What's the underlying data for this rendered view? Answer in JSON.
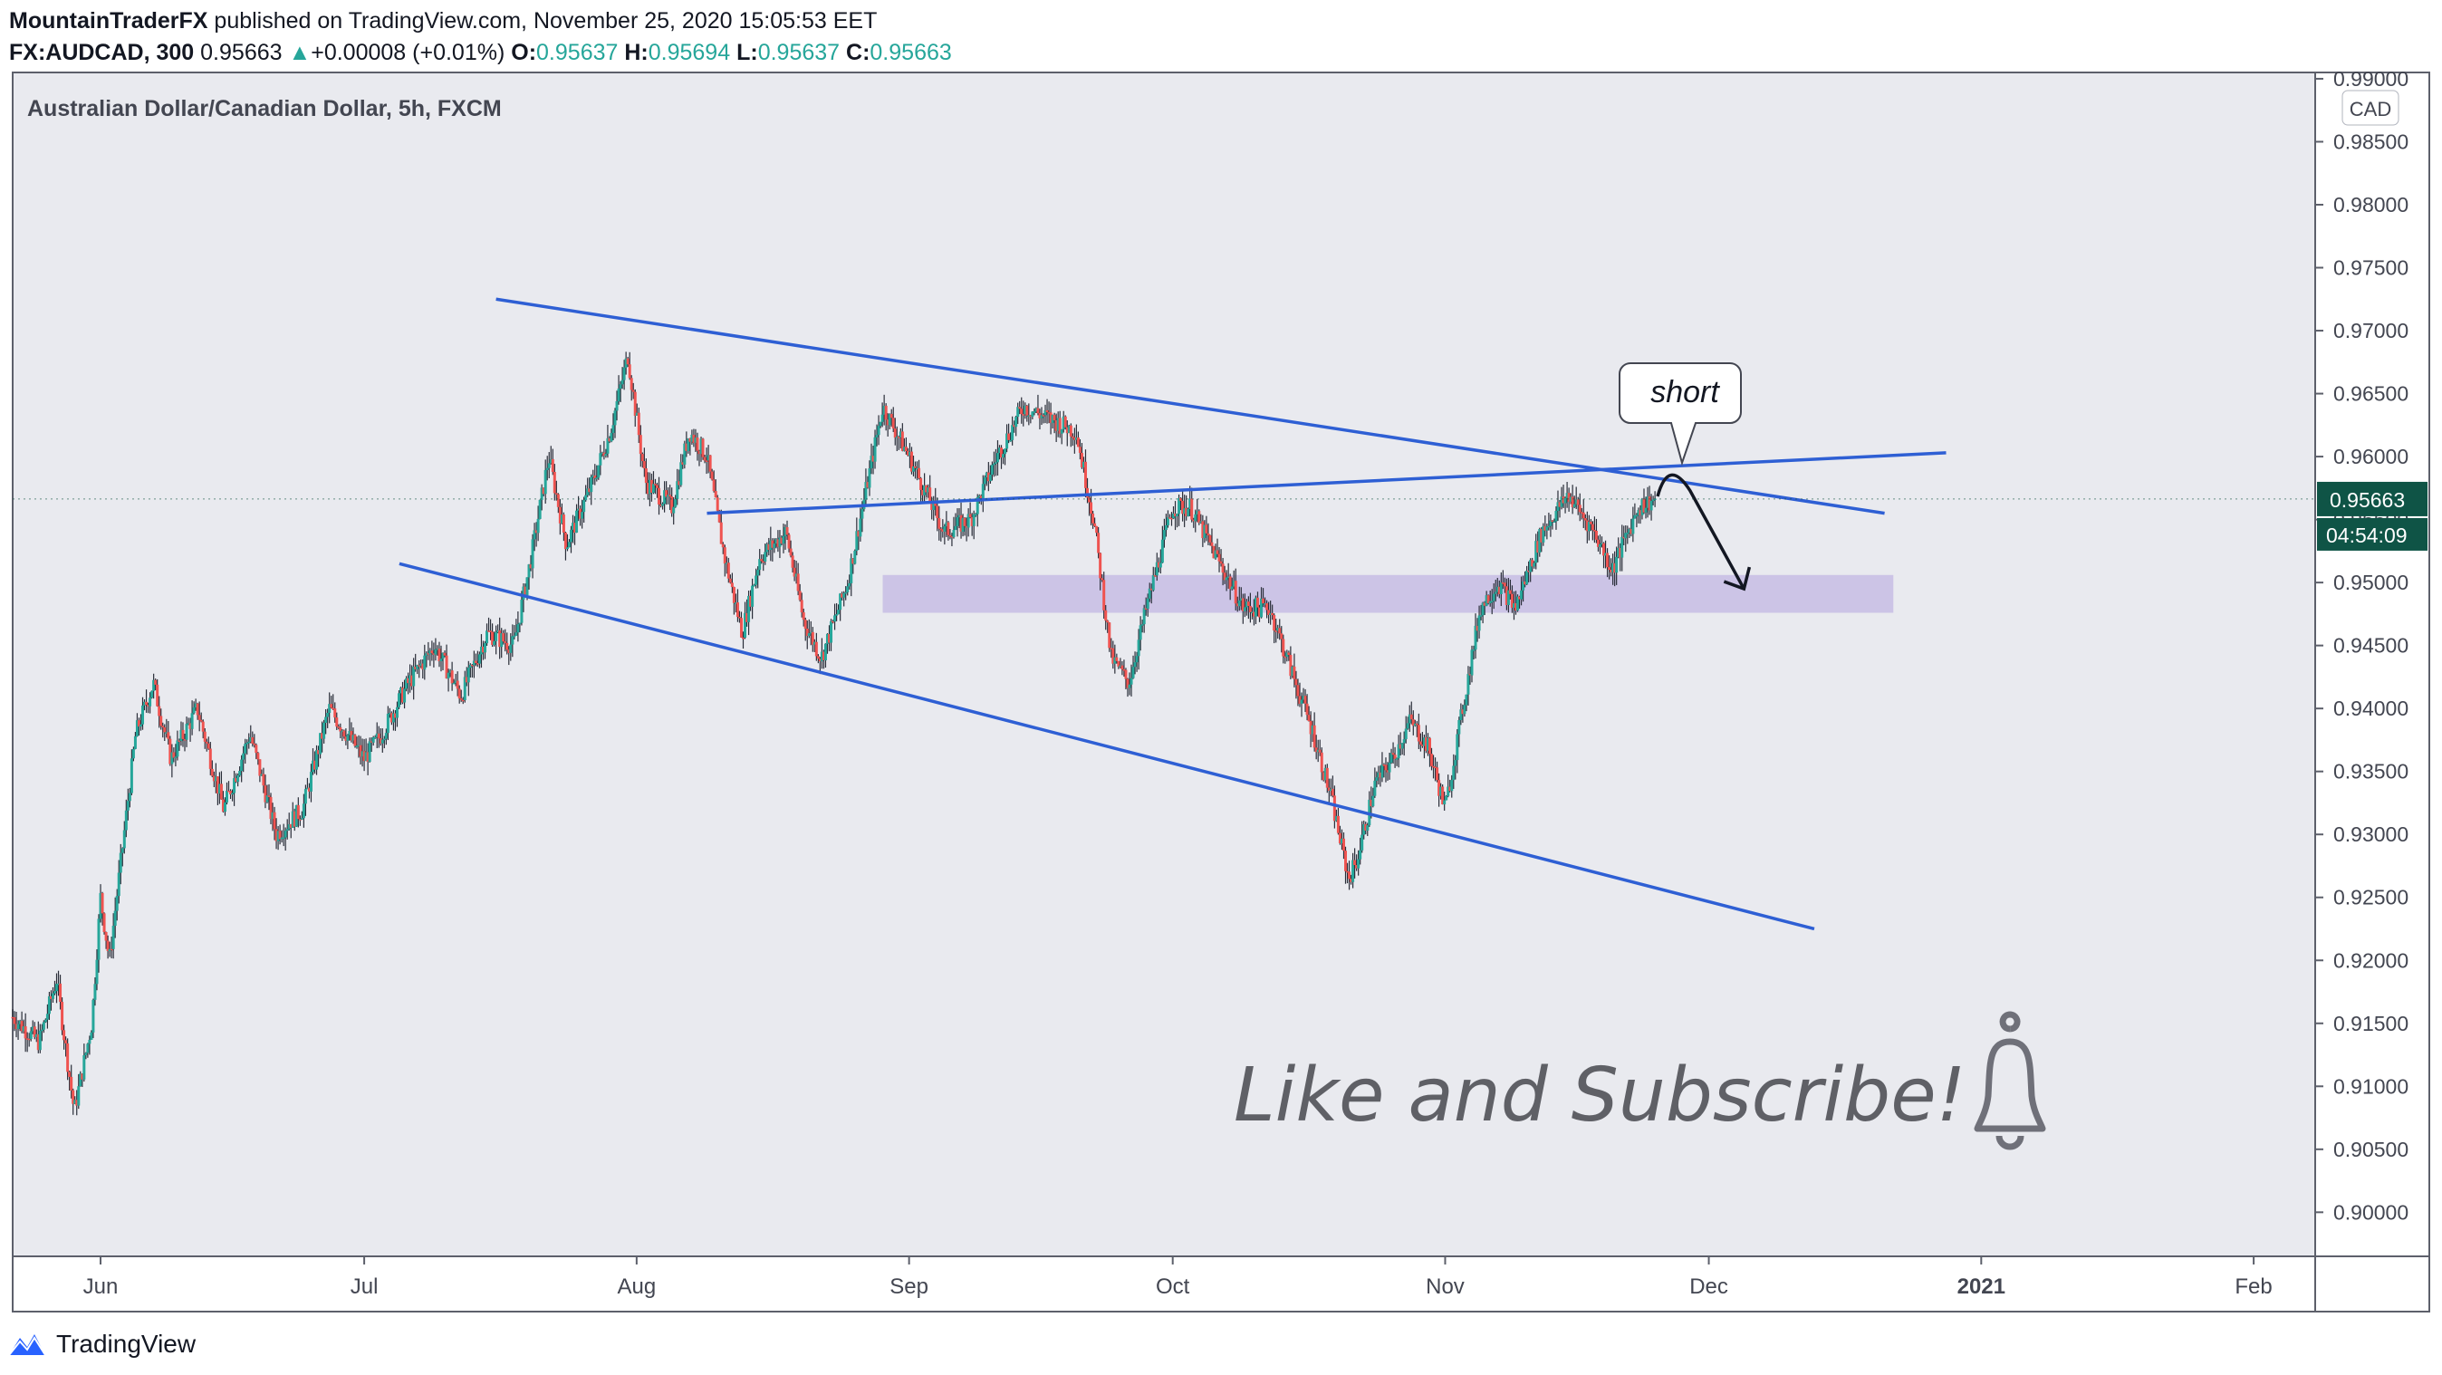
{
  "header": {
    "author": "MountainTraderFX",
    "published_text": " published on TradingView.com, November 25, 2020 15:05:53 EET",
    "symbol": "FX:AUDCAD, 300",
    "last_price": "0.95663",
    "change_arrow": "▲",
    "change": "+0.00008 (+0.01%)",
    "open_label": "O:",
    "open": "0.95637",
    "high_label": "H:",
    "high": "0.95694",
    "low_label": "L:",
    "low": "0.95637",
    "close_label": "C:",
    "close": "0.95663"
  },
  "footer": {
    "brand": "TradingView",
    "logo_icon": "tradingview-logo-icon"
  },
  "annotations": {
    "callout": "short",
    "cta_text": "Like and Subscribe!",
    "bell_icon": "bell-icon",
    "zone_color": "#c9c0e4",
    "trendline_color": "#2e5fd4"
  },
  "chart_data": {
    "type": "candlestick",
    "title": "Australian Dollar/Canadian Dollar, 5h, FXCM",
    "currency": "CAD",
    "x_ticks": [
      "Jun",
      "Jul",
      "Aug",
      "Sep",
      "Oct",
      "Nov",
      "Dec",
      "2021",
      "Feb"
    ],
    "x_tick_dates": [
      "2020-06-01",
      "2020-07-01",
      "2020-08-01",
      "2020-09-01",
      "2020-10-01",
      "2020-11-01",
      "2020-12-01",
      "2021-01-01",
      "2021-02-01"
    ],
    "x_range": [
      "2020-05-22",
      "2021-02-08"
    ],
    "y_range": [
      0.8965,
      0.9905
    ],
    "y_ticks": [
      "0.99000",
      "0.98500",
      "0.98000",
      "0.97500",
      "0.97000",
      "0.96500",
      "0.96000",
      "0.95500",
      "0.95000",
      "0.94500",
      "0.94000",
      "0.93500",
      "0.93000",
      "0.92500",
      "0.92000",
      "0.91500",
      "0.91000",
      "0.90500",
      "0.90000"
    ],
    "last_price_label": "0.95663",
    "countdown": "04:54:09",
    "up_color": "#26a69a",
    "down_color": "#ef5350",
    "price_path": [
      [
        "2020-05-22",
        0.9155
      ],
      [
        "2020-05-25",
        0.9135
      ],
      [
        "2020-05-27",
        0.9185
      ],
      [
        "2020-05-29",
        0.908
      ],
      [
        "2020-05-31",
        0.915
      ],
      [
        "2020-06-01",
        0.925
      ],
      [
        "2020-06-02",
        0.92
      ],
      [
        "2020-06-05",
        0.938
      ],
      [
        "2020-06-07",
        0.942
      ],
      [
        "2020-06-09",
        0.936
      ],
      [
        "2020-06-12",
        0.94
      ],
      [
        "2020-06-15",
        0.932
      ],
      [
        "2020-06-18",
        0.938
      ],
      [
        "2020-06-21",
        0.93
      ],
      [
        "2020-06-24",
        0.932
      ],
      [
        "2020-06-27",
        0.94
      ],
      [
        "2020-07-01",
        0.936
      ],
      [
        "2020-07-03",
        0.938
      ],
      [
        "2020-07-06",
        0.942
      ],
      [
        "2020-07-09",
        0.945
      ],
      [
        "2020-07-12",
        0.941
      ],
      [
        "2020-07-15",
        0.946
      ],
      [
        "2020-07-18",
        0.945
      ],
      [
        "2020-07-20",
        0.952
      ],
      [
        "2020-07-22",
        0.96
      ],
      [
        "2020-07-24",
        0.953
      ],
      [
        "2020-07-27",
        0.958
      ],
      [
        "2020-07-29",
        0.962
      ],
      [
        "2020-07-31",
        0.968
      ],
      [
        "2020-08-02",
        0.958
      ],
      [
        "2020-08-05",
        0.956
      ],
      [
        "2020-08-07",
        0.962
      ],
      [
        "2020-08-09",
        0.96
      ],
      [
        "2020-08-11",
        0.952
      ],
      [
        "2020-08-13",
        0.946
      ],
      [
        "2020-08-15",
        0.952
      ],
      [
        "2020-08-18",
        0.954
      ],
      [
        "2020-08-20",
        0.947
      ],
      [
        "2020-08-22",
        0.944
      ],
      [
        "2020-08-25",
        0.95
      ],
      [
        "2020-08-27",
        0.957
      ],
      [
        "2020-08-29",
        0.964
      ],
      [
        "2020-09-01",
        0.96
      ],
      [
        "2020-09-03",
        0.957
      ],
      [
        "2020-09-05",
        0.954
      ],
      [
        "2020-09-08",
        0.955
      ],
      [
        "2020-09-11",
        0.96
      ],
      [
        "2020-09-14",
        0.964
      ],
      [
        "2020-09-17",
        0.963
      ],
      [
        "2020-09-20",
        0.962
      ],
      [
        "2020-09-22",
        0.955
      ],
      [
        "2020-09-24",
        0.944
      ],
      [
        "2020-09-26",
        0.942
      ],
      [
        "2020-09-28",
        0.948
      ],
      [
        "2020-10-01",
        0.956
      ],
      [
        "2020-10-03",
        0.956
      ],
      [
        "2020-10-06",
        0.952
      ],
      [
        "2020-10-09",
        0.948
      ],
      [
        "2020-10-12",
        0.948
      ],
      [
        "2020-10-14",
        0.944
      ],
      [
        "2020-10-17",
        0.938
      ],
      [
        "2020-10-19",
        0.933
      ],
      [
        "2020-10-21",
        0.9265
      ],
      [
        "2020-10-22",
        0.928
      ],
      [
        "2020-10-24",
        0.934
      ],
      [
        "2020-10-26",
        0.936
      ],
      [
        "2020-10-28",
        0.939
      ],
      [
        "2020-10-30",
        0.937
      ],
      [
        "2020-11-01",
        0.932
      ],
      [
        "2020-11-03",
        0.94
      ],
      [
        "2020-11-05",
        0.948
      ],
      [
        "2020-11-07",
        0.95
      ],
      [
        "2020-11-09",
        0.948
      ],
      [
        "2020-11-12",
        0.954
      ],
      [
        "2020-11-15",
        0.957
      ],
      [
        "2020-11-18",
        0.954
      ],
      [
        "2020-11-20",
        0.951
      ],
      [
        "2020-11-23",
        0.956
      ],
      [
        "2020-11-25",
        0.95663
      ]
    ],
    "trendlines": [
      {
        "name": "upper",
        "from": [
          "2020-07-16",
          0.9725
        ],
        "to": [
          "2020-12-21",
          0.9555
        ]
      },
      {
        "name": "lower",
        "from": [
          "2020-07-05",
          0.9515
        ],
        "to": [
          "2020-12-13",
          0.9225
        ]
      },
      {
        "name": "middle",
        "from": [
          "2020-08-09",
          0.9555
        ],
        "to": [
          "2020-12-28",
          0.9603
        ]
      }
    ],
    "zone": {
      "y_from": 0.9476,
      "y_to": 0.9506,
      "x_from": "2020-08-29",
      "x_to": "2020-12-22"
    },
    "projection_arrow": {
      "from": [
        "2020-11-26",
        0.959
      ],
      "to": [
        "2020-12-05",
        0.9495
      ]
    }
  }
}
